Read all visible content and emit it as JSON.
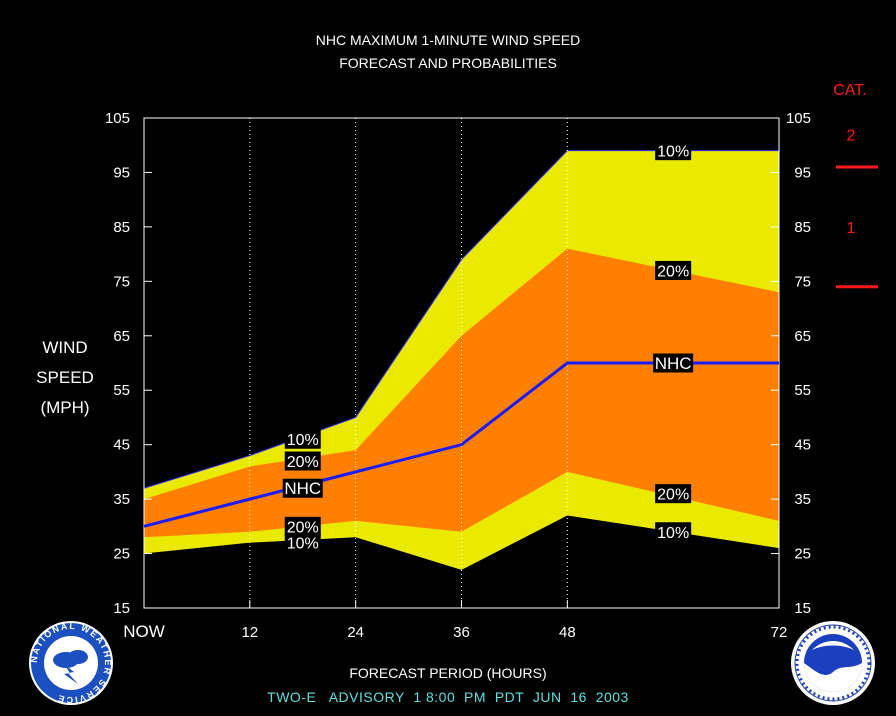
{
  "chart_data": {
    "type": "area",
    "title": "NHC MAXIMUM 1-MINUTE WIND SPEED",
    "subtitle": "FORECAST AND PROBABILITIES",
    "ylabel_lines": [
      "WIND",
      "SPEED",
      "(MPH)"
    ],
    "xlabel": "FORECAST PERIOD (HOURS)",
    "footer": "TWO-E   ADVISORY  1 8:00  PM  PDT  JUN  16  2003",
    "x": [
      0,
      12,
      24,
      36,
      48,
      72
    ],
    "x_tick_labels": [
      "NOW",
      "12",
      "24",
      "36",
      "48",
      "72"
    ],
    "ylim": [
      15,
      105
    ],
    "y_ticks": [
      15,
      25,
      35,
      45,
      55,
      65,
      75,
      85,
      95,
      105
    ],
    "grid_x": [
      12,
      24,
      36,
      48
    ],
    "bands": {
      "upper_10": [
        37,
        43,
        50,
        79,
        99,
        99
      ],
      "upper_20": [
        35,
        41,
        44,
        65,
        81,
        73
      ],
      "nhc": [
        30,
        35,
        40,
        45,
        60,
        60
      ],
      "lower_20": [
        28,
        29,
        31,
        29,
        40,
        31
      ],
      "lower_10": [
        25,
        27,
        28,
        22,
        32,
        26
      ]
    },
    "band_labels": [
      {
        "text": "10%",
        "x": 18,
        "y": 46
      },
      {
        "text": "20%",
        "x": 18,
        "y": 42
      },
      {
        "text": "NHC",
        "x": 18,
        "y": 37
      },
      {
        "text": "20%",
        "x": 18,
        "y": 30
      },
      {
        "text": "10%",
        "x": 18,
        "y": 27
      },
      {
        "text": "10%",
        "x": 60,
        "y": 99
      },
      {
        "text": "20%",
        "x": 60,
        "y": 77
      },
      {
        "text": "NHC",
        "x": 60,
        "y": 60
      },
      {
        "text": "20%",
        "x": 60,
        "y": 36
      },
      {
        "text": "10%",
        "x": 60,
        "y": 29
      }
    ],
    "colors": {
      "upper_band": "#eaea00",
      "inner_band": "#ff8000",
      "nhc_line": "#1a1aff",
      "categories": "#ff1a1a"
    },
    "categories": {
      "heading": "CAT.",
      "thresholds": [
        96,
        74
      ],
      "labels": [
        {
          "text": "2",
          "y": 102
        },
        {
          "text": "1",
          "y": 85
        }
      ]
    }
  },
  "logos": {
    "left": "nws-logo",
    "right": "noaa-logo"
  }
}
